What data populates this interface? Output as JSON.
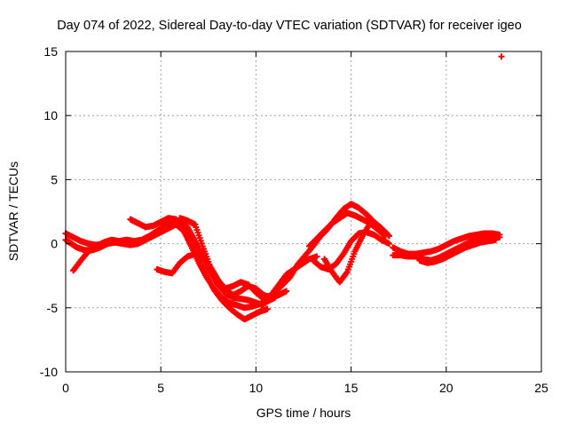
{
  "chart_data": {
    "type": "scatter",
    "title": "Day 074 of 2022, Sidereal Day-to-day VTEC variation (SDTVAR) for receiver igeo",
    "xlabel": "GPS time / hours",
    "ylabel": "SDTVAR / TECUs",
    "xlim": [
      0,
      25
    ],
    "ylim": [
      -10,
      15
    ],
    "x_ticks": [
      0,
      5,
      10,
      15,
      20,
      25
    ],
    "y_ticks": [
      -10,
      -5,
      0,
      5,
      10,
      15
    ],
    "x_tick_labels": [
      "0",
      "5",
      "10",
      "15",
      "20",
      "25"
    ],
    "y_tick_labels": [
      "-10",
      "-5",
      "0",
      "5",
      "10",
      "15"
    ],
    "grid": true,
    "marker": "plus",
    "color": "#ff0000",
    "series": [
      {
        "name": "track-1",
        "x": [
          0.0,
          0.4,
          0.8,
          1.2,
          1.6,
          2.0,
          2.4,
          2.8,
          3.2,
          3.6,
          4.0,
          4.4,
          4.8,
          5.2,
          5.6,
          6.0,
          6.4,
          6.8,
          7.2,
          7.6,
          8.0,
          8.4,
          8.8,
          9.2,
          9.6,
          10.0,
          10.4
        ],
        "y": [
          0.8,
          0.5,
          0.2,
          0.0,
          -0.1,
          0.0,
          0.1,
          0.2,
          0.3,
          0.2,
          0.3,
          0.6,
          1.0,
          1.4,
          1.7,
          1.8,
          1.3,
          0.2,
          -1.0,
          -2.2,
          -3.2,
          -3.9,
          -4.2,
          -4.3,
          -4.4,
          -4.6,
          -4.8
        ]
      },
      {
        "name": "track-2",
        "x": [
          0.0,
          0.3,
          0.6,
          1.0,
          1.4,
          1.8,
          2.2,
          2.6,
          3.0,
          3.4,
          3.8,
          4.2,
          4.6,
          5.0,
          5.4,
          5.8,
          6.2,
          6.6,
          7.0,
          7.4,
          7.8,
          8.2,
          8.6,
          9.0,
          9.4,
          9.8,
          10.2,
          10.6,
          11.0
        ],
        "y": [
          0.3,
          0.0,
          -0.3,
          -0.5,
          -0.5,
          -0.3,
          0.0,
          0.1,
          0.0,
          -0.1,
          0.0,
          0.3,
          0.6,
          0.9,
          1.2,
          1.5,
          1.0,
          -0.2,
          -1.5,
          -2.6,
          -3.5,
          -4.2,
          -4.6,
          -4.8,
          -5.0,
          -4.9,
          -4.7,
          -4.5,
          -4.2
        ]
      },
      {
        "name": "track-3",
        "x": [
          0.4,
          0.8,
          1.2,
          1.6,
          2.0,
          2.4,
          2.8,
          3.2
        ],
        "y": [
          -2.1,
          -1.3,
          -0.6,
          -0.2,
          0.1,
          0.3,
          0.2,
          0.1
        ]
      },
      {
        "name": "track-4",
        "x": [
          3.4,
          3.8,
          4.2,
          4.6,
          5.0,
          5.4,
          5.8,
          6.2,
          6.6,
          7.0,
          7.4,
          7.8,
          8.2,
          8.6,
          9.0,
          9.4,
          9.8,
          10.2,
          10.6
        ],
        "y": [
          1.9,
          1.6,
          1.3,
          1.4,
          1.7,
          2.0,
          1.9,
          1.2,
          0.0,
          -1.3,
          -2.5,
          -3.6,
          -4.4,
          -5.0,
          -5.5,
          -5.9,
          -5.6,
          -5.3,
          -5.1
        ]
      },
      {
        "name": "track-5",
        "x": [
          4.8,
          5.2,
          5.6,
          6.0,
          6.4,
          6.8,
          7.2,
          7.6,
          8.0,
          8.4,
          8.8,
          9.2,
          9.6,
          10.0,
          10.4,
          10.8,
          11.2,
          11.6
        ],
        "y": [
          -2.0,
          -2.2,
          -2.3,
          -1.5,
          -1.0,
          -0.8,
          -1.1,
          -1.8,
          -2.8,
          -3.6,
          -4.0,
          -3.7,
          -3.3,
          -3.5,
          -4.0,
          -4.2,
          -4.0,
          -3.7
        ]
      },
      {
        "name": "track-6",
        "x": [
          6.0,
          6.4,
          6.8,
          7.2,
          7.6,
          8.0,
          8.4,
          8.8,
          9.2,
          9.6,
          10.0,
          10.4,
          10.8,
          11.2,
          11.6,
          12.0,
          12.4,
          12.8,
          13.2
        ],
        "y": [
          2.0,
          1.8,
          1.5,
          -0.2,
          -1.8,
          -2.9,
          -3.5,
          -3.3,
          -3.0,
          -3.2,
          -3.8,
          -4.3,
          -4.0,
          -3.2,
          -2.4,
          -2.0,
          -1.6,
          -1.2,
          -1.0
        ]
      },
      {
        "name": "track-7",
        "x": [
          11.0,
          11.4,
          11.8,
          12.2,
          12.6,
          13.0,
          13.4,
          13.8,
          14.2,
          14.6,
          15.0,
          15.4,
          15.8,
          16.2,
          16.6,
          17.0
        ],
        "y": [
          -3.8,
          -3.2,
          -2.6,
          -1.6,
          -0.9,
          -0.2,
          0.6,
          1.2,
          2.0,
          2.7,
          3.1,
          2.8,
          2.3,
          1.7,
          1.2,
          0.6
        ]
      },
      {
        "name": "track-8",
        "x": [
          13.0,
          13.4,
          13.8,
          14.2,
          14.6,
          15.0,
          15.4,
          15.8,
          16.2,
          16.6,
          17.0
        ],
        "y": [
          -1.3,
          -1.8,
          -2.0,
          -1.6,
          -0.8,
          0.2,
          0.8,
          0.9,
          0.7,
          0.3,
          0.0
        ]
      },
      {
        "name": "track-9",
        "x": [
          13.6,
          14.0,
          14.4,
          14.8,
          15.2,
          15.6,
          16.0,
          16.4
        ],
        "y": [
          -1.2,
          -2.2,
          -3.0,
          -2.2,
          -0.6,
          0.6,
          1.6,
          1.4
        ]
      },
      {
        "name": "track-10",
        "x": [
          12.8,
          13.2,
          13.6,
          14.0,
          14.4,
          14.8,
          15.2,
          15.6,
          16.0,
          16.4,
          16.8
        ],
        "y": [
          -0.2,
          0.4,
          1.0,
          1.6,
          2.0,
          2.4,
          2.2,
          1.9,
          1.6,
          1.1,
          0.6
        ]
      },
      {
        "name": "track-11",
        "x": [
          17.2,
          17.6,
          18.0,
          18.4,
          18.8,
          19.2,
          19.6,
          20.0,
          20.4,
          20.8,
          21.2,
          21.6,
          22.0,
          22.4,
          22.8
        ],
        "y": [
          -0.9,
          -0.9,
          -1.0,
          -1.0,
          -1.2,
          -1.3,
          -1.1,
          -0.8,
          -0.5,
          -0.2,
          0.1,
          0.3,
          0.4,
          0.5,
          0.5
        ]
      },
      {
        "name": "track-12",
        "x": [
          17.2,
          17.6,
          18.0,
          18.4,
          18.8,
          19.2,
          19.6,
          20.0,
          20.4,
          20.8,
          21.2,
          21.6,
          22.0,
          22.4,
          22.8
        ],
        "y": [
          -0.3,
          -0.6,
          -0.8,
          -0.8,
          -0.7,
          -0.6,
          -0.4,
          -0.1,
          0.2,
          0.4,
          0.6,
          0.7,
          0.8,
          0.8,
          0.7
        ]
      },
      {
        "name": "track-13",
        "x": [
          18.6,
          19.0,
          19.4,
          19.8,
          20.2,
          20.6,
          21.0,
          21.4,
          21.8,
          22.2,
          22.6
        ],
        "y": [
          -1.3,
          -1.5,
          -1.4,
          -1.2,
          -0.9,
          -0.6,
          -0.3,
          -0.1,
          0.1,
          0.2,
          0.3
        ]
      },
      {
        "name": "outlier",
        "x": [
          22.9
        ],
        "y": [
          14.6
        ]
      }
    ]
  }
}
